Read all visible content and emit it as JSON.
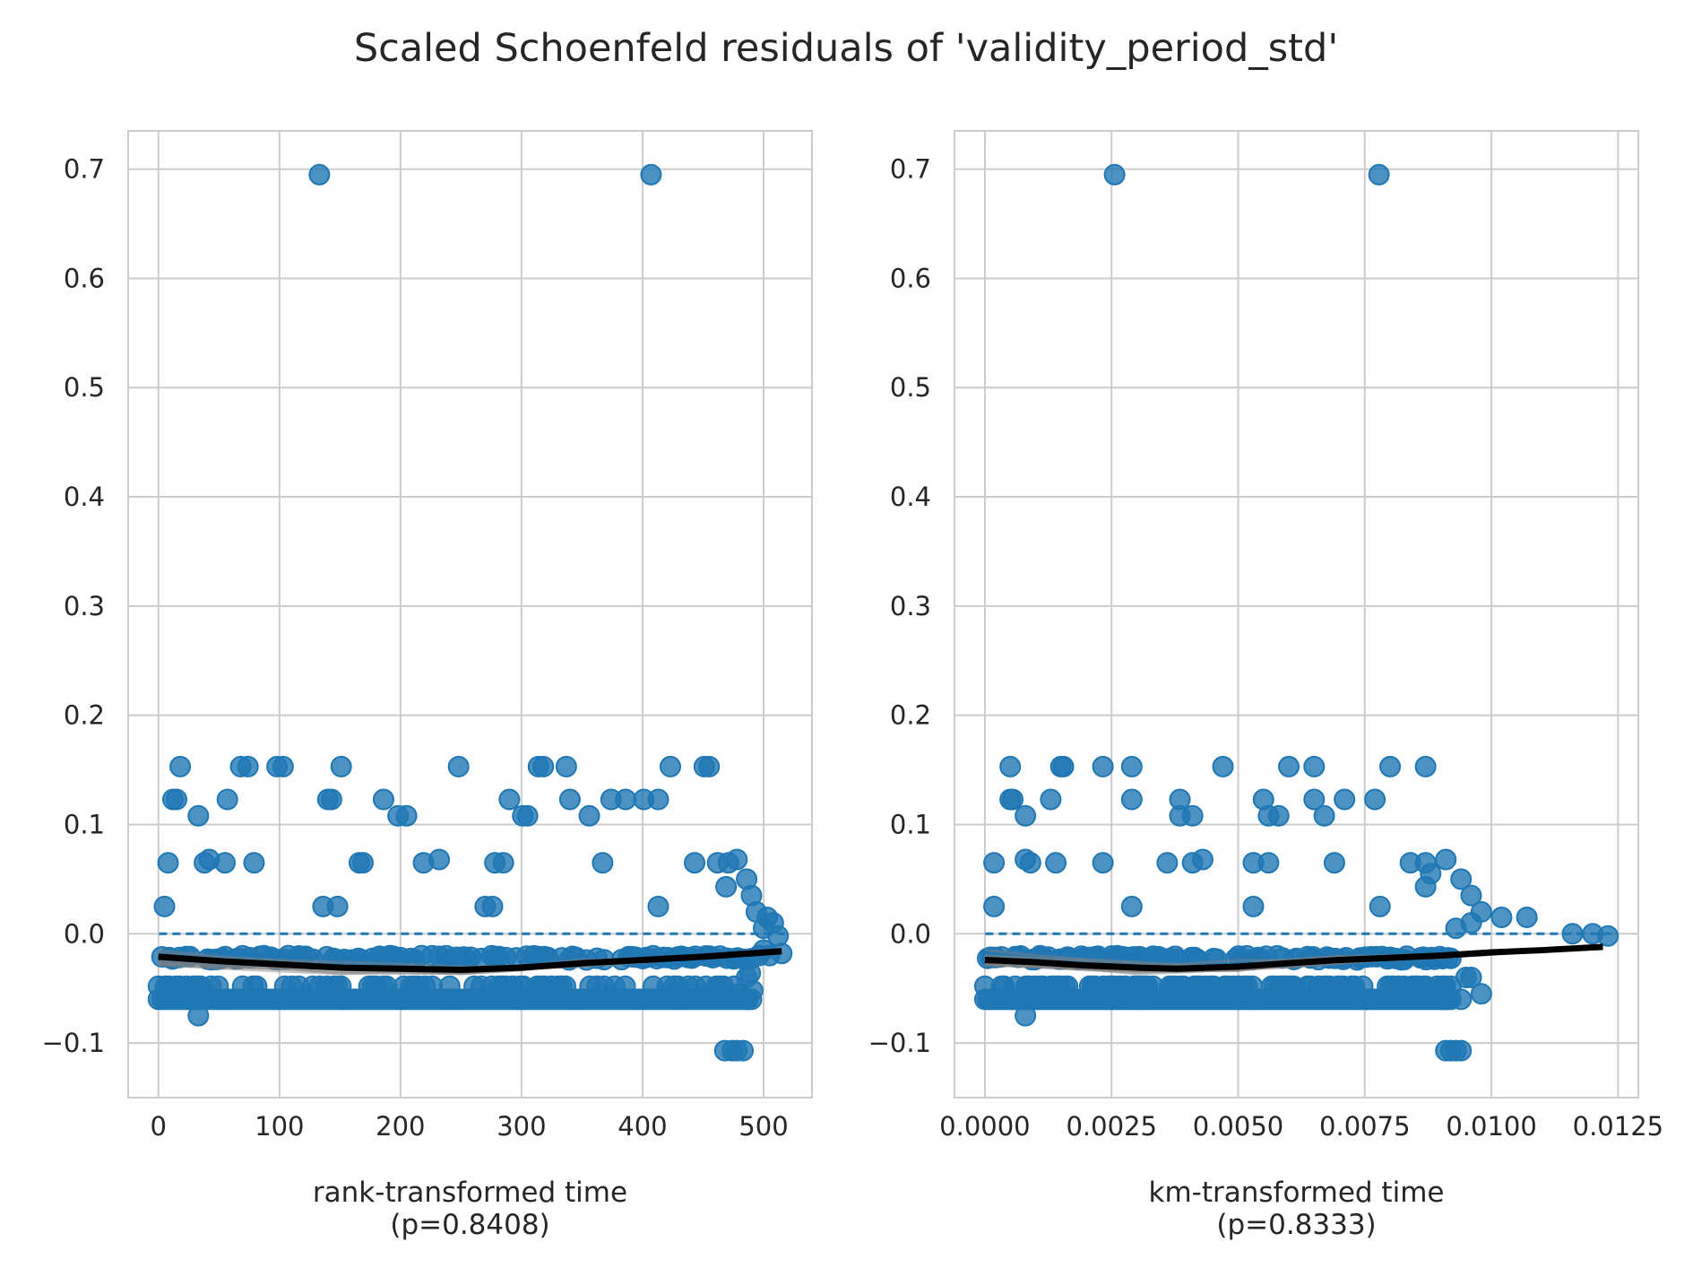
{
  "title": "Scaled Schoenfeld residuals of 'validity_period_std'",
  "colors": {
    "points": "#1f77b4",
    "trend": "#000000",
    "band": "#808080",
    "grid": "#cccccc",
    "zero_line": "#1f77b4"
  },
  "chart_data": [
    {
      "type": "scatter",
      "xlabel": "rank-transformed time",
      "pvalue_label": "(p=0.8408)",
      "xlim": [
        -25,
        540
      ],
      "ylim": [
        -0.15,
        0.735
      ],
      "xticks": [
        0,
        100,
        200,
        300,
        400,
        500
      ],
      "xtick_labels": [
        "0",
        "100",
        "200",
        "300",
        "400",
        "500"
      ],
      "yticks": [
        -0.1,
        0.0,
        0.1,
        0.2,
        0.3,
        0.4,
        0.5,
        0.6,
        0.7
      ],
      "ytick_labels": [
        "−0.1",
        "0.0",
        "0.1",
        "0.2",
        "0.3",
        "0.4",
        "0.5",
        "0.6",
        "0.7"
      ],
      "grid": true,
      "zero_reference_line": 0.0,
      "outliers": [
        [
          133,
          0.695
        ],
        [
          407,
          0.695
        ]
      ],
      "high_points": [
        [
          8,
          0.065
        ],
        [
          5,
          0.025
        ],
        [
          12,
          0.123
        ],
        [
          15,
          0.123
        ],
        [
          18,
          0.153
        ],
        [
          33,
          0.108
        ],
        [
          38,
          0.065
        ],
        [
          42,
          0.068
        ],
        [
          55,
          0.065
        ],
        [
          57,
          0.123
        ],
        [
          68,
          0.153
        ],
        [
          74,
          0.153
        ],
        [
          79,
          0.065
        ],
        [
          98,
          0.153
        ],
        [
          103,
          0.153
        ],
        [
          136,
          0.025
        ],
        [
          140,
          0.123
        ],
        [
          143,
          0.123
        ],
        [
          148,
          0.025
        ],
        [
          151,
          0.153
        ],
        [
          166,
          0.065
        ],
        [
          169,
          0.065
        ],
        [
          186,
          0.123
        ],
        [
          198,
          0.108
        ],
        [
          205,
          0.108
        ],
        [
          219,
          0.065
        ],
        [
          232,
          0.068
        ],
        [
          248,
          0.153
        ],
        [
          270,
          0.025
        ],
        [
          276,
          0.025
        ],
        [
          278,
          0.065
        ],
        [
          285,
          0.065
        ],
        [
          290,
          0.123
        ],
        [
          301,
          0.108
        ],
        [
          305,
          0.108
        ],
        [
          314,
          0.153
        ],
        [
          318,
          0.153
        ],
        [
          337,
          0.153
        ],
        [
          340,
          0.123
        ],
        [
          356,
          0.108
        ],
        [
          367,
          0.065
        ],
        [
          374,
          0.123
        ],
        [
          386,
          0.123
        ],
        [
          401,
          0.123
        ],
        [
          413,
          0.123
        ],
        [
          413,
          0.025
        ],
        [
          423,
          0.153
        ],
        [
          443,
          0.065
        ],
        [
          451,
          0.153
        ],
        [
          455,
          0.153
        ],
        [
          462,
          0.065
        ],
        [
          469,
          0.043
        ],
        [
          471,
          0.065
        ],
        [
          478,
          0.068
        ],
        [
          486,
          0.05
        ],
        [
          490,
          0.035
        ],
        [
          494,
          0.02
        ],
        [
          500,
          0.005
        ],
        [
          503,
          0.015
        ],
        [
          508,
          0.01
        ],
        [
          512,
          -0.002
        ]
      ],
      "low_points": [
        [
          33,
          -0.075
        ],
        [
          468,
          -0.107
        ],
        [
          474,
          -0.107
        ],
        [
          478,
          -0.107
        ],
        [
          483,
          -0.107
        ],
        [
          487,
          -0.06
        ],
        [
          491,
          -0.052
        ],
        [
          486,
          -0.04
        ],
        [
          489,
          -0.036
        ],
        [
          480,
          -0.055
        ],
        [
          496,
          -0.02
        ],
        [
          500,
          -0.015
        ],
        [
          505,
          -0.02
        ],
        [
          515,
          -0.018
        ]
      ],
      "bands": {
        "dense_bottom": -0.06,
        "dense_mid": -0.048,
        "dense_top": -0.022,
        "x_range": [
          0,
          490
        ]
      },
      "trend": [
        [
          0,
          -0.021
        ],
        [
          50,
          -0.025
        ],
        [
          100,
          -0.028
        ],
        [
          150,
          -0.031
        ],
        [
          200,
          -0.032
        ],
        [
          250,
          -0.033
        ],
        [
          300,
          -0.031
        ],
        [
          350,
          -0.027
        ],
        [
          400,
          -0.024
        ],
        [
          450,
          -0.021
        ],
        [
          515,
          -0.016
        ]
      ]
    },
    {
      "type": "scatter",
      "xlabel": "km-transformed time",
      "pvalue_label": "(p=0.8333)",
      "xlim": [
        -0.0006,
        0.0129
      ],
      "ylim": [
        -0.15,
        0.735
      ],
      "xticks": [
        0.0,
        0.0025,
        0.005,
        0.0075,
        0.01,
        0.0125
      ],
      "xtick_labels": [
        "0.0000",
        "0.0025",
        "0.0050",
        "0.0075",
        "0.0100",
        "0.0125"
      ],
      "yticks": [
        -0.1,
        0.0,
        0.1,
        0.2,
        0.3,
        0.4,
        0.5,
        0.6,
        0.7
      ],
      "ytick_labels": [
        "−0.1",
        "0.0",
        "0.1",
        "0.2",
        "0.3",
        "0.4",
        "0.5",
        "0.6",
        "0.7"
      ],
      "grid": true,
      "zero_reference_line": 0.0,
      "outliers": [
        [
          0.00256,
          0.695
        ],
        [
          0.00778,
          0.695
        ]
      ],
      "high_points": [
        [
          0.00018,
          0.065
        ],
        [
          0.00018,
          0.025
        ],
        [
          0.0005,
          0.153
        ],
        [
          0.0005,
          0.123
        ],
        [
          0.00055,
          0.123
        ],
        [
          0.0008,
          0.108
        ],
        [
          0.0008,
          0.068
        ],
        [
          0.0009,
          0.065
        ],
        [
          0.0013,
          0.123
        ],
        [
          0.0014,
          0.065
        ],
        [
          0.0015,
          0.153
        ],
        [
          0.00155,
          0.153
        ],
        [
          0.00233,
          0.153
        ],
        [
          0.00233,
          0.065
        ],
        [
          0.0029,
          0.153
        ],
        [
          0.0029,
          0.123
        ],
        [
          0.0029,
          0.025
        ],
        [
          0.0036,
          0.065
        ],
        [
          0.00385,
          0.123
        ],
        [
          0.00385,
          0.108
        ],
        [
          0.0041,
          0.108
        ],
        [
          0.0041,
          0.065
        ],
        [
          0.0043,
          0.068
        ],
        [
          0.0047,
          0.153
        ],
        [
          0.0053,
          0.065
        ],
        [
          0.0053,
          0.025
        ],
        [
          0.0055,
          0.123
        ],
        [
          0.0056,
          0.108
        ],
        [
          0.0056,
          0.065
        ],
        [
          0.0058,
          0.108
        ],
        [
          0.006,
          0.153
        ],
        [
          0.0065,
          0.153
        ],
        [
          0.0065,
          0.123
        ],
        [
          0.0067,
          0.108
        ],
        [
          0.0069,
          0.065
        ],
        [
          0.0071,
          0.123
        ],
        [
          0.0077,
          0.123
        ],
        [
          0.0078,
          0.025
        ],
        [
          0.008,
          0.153
        ],
        [
          0.0084,
          0.065
        ],
        [
          0.0087,
          0.153
        ],
        [
          0.0087,
          0.065
        ],
        [
          0.0087,
          0.043
        ],
        [
          0.0088,
          0.055
        ],
        [
          0.0091,
          0.068
        ],
        [
          0.0094,
          0.05
        ],
        [
          0.0096,
          0.035
        ],
        [
          0.0098,
          0.02
        ],
        [
          0.0093,
          0.005
        ],
        [
          0.0096,
          0.01
        ],
        [
          0.0102,
          0.015
        ],
        [
          0.0107,
          0.015
        ],
        [
          0.0116,
          0.0
        ],
        [
          0.012,
          0.0
        ],
        [
          0.0123,
          -0.002
        ]
      ],
      "low_points": [
        [
          0.0008,
          -0.075
        ],
        [
          0.0091,
          -0.107
        ],
        [
          0.0092,
          -0.107
        ],
        [
          0.0093,
          -0.107
        ],
        [
          0.0094,
          -0.107
        ],
        [
          0.0091,
          -0.06
        ],
        [
          0.0094,
          -0.06
        ],
        [
          0.0095,
          -0.04
        ],
        [
          0.0096,
          -0.04
        ],
        [
          0.0098,
          -0.055
        ]
      ],
      "bands": {
        "dense_bottom": -0.06,
        "dense_mid": -0.048,
        "dense_top": -0.022,
        "x_range": [
          0.0,
          0.0092
        ]
      },
      "trend": [
        [
          0.0,
          -0.024
        ],
        [
          0.001,
          -0.026
        ],
        [
          0.002,
          -0.029
        ],
        [
          0.003,
          -0.031
        ],
        [
          0.0038,
          -0.032
        ],
        [
          0.005,
          -0.03
        ],
        [
          0.006,
          -0.027
        ],
        [
          0.007,
          -0.024
        ],
        [
          0.008,
          -0.022
        ],
        [
          0.009,
          -0.02
        ],
        [
          0.01,
          -0.017
        ],
        [
          0.011,
          -0.015
        ],
        [
          0.0122,
          -0.012
        ]
      ]
    }
  ]
}
